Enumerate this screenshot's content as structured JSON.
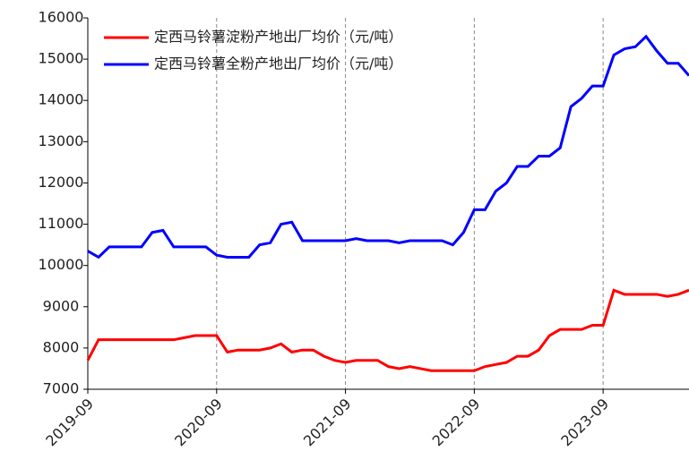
{
  "chart_data": {
    "type": "line",
    "x": [
      "2019-09",
      "2019-10",
      "2019-11",
      "2019-12",
      "2020-01",
      "2020-02",
      "2020-03",
      "2020-04",
      "2020-05",
      "2020-06",
      "2020-07",
      "2020-08",
      "2020-09",
      "2020-10",
      "2020-11",
      "2020-12",
      "2021-01",
      "2021-02",
      "2021-03",
      "2021-04",
      "2021-05",
      "2021-06",
      "2021-07",
      "2021-08",
      "2021-09",
      "2021-10",
      "2021-11",
      "2021-12",
      "2022-01",
      "2022-02",
      "2022-03",
      "2022-04",
      "2022-05",
      "2022-06",
      "2022-07",
      "2022-08",
      "2022-09",
      "2022-10",
      "2022-11",
      "2022-12",
      "2023-01",
      "2023-02",
      "2023-03",
      "2023-04",
      "2023-05",
      "2023-06",
      "2023-07",
      "2023-08",
      "2023-09",
      "2023-10",
      "2023-11",
      "2023-12",
      "2024-01",
      "2024-02",
      "2024-03",
      "2024-04",
      "2024-05"
    ],
    "series": [
      {
        "name": "定西马铃薯淀粉产地出厂均价（元/吨）",
        "color": "#ff0000",
        "values": [
          7700,
          8200,
          8200,
          8200,
          8200,
          8200,
          8200,
          8200,
          8200,
          8250,
          8300,
          8300,
          8300,
          7900,
          7950,
          7950,
          7950,
          8000,
          8100,
          7900,
          7950,
          7950,
          7800,
          7700,
          7650,
          7700,
          7700,
          7700,
          7550,
          7500,
          7550,
          7500,
          7450,
          7450,
          7450,
          7450,
          7450,
          7550,
          7600,
          7650,
          7800,
          7800,
          7950,
          8300,
          8450,
          8450,
          8450,
          8550,
          8550,
          9400,
          9300,
          9300,
          9300,
          9300,
          9250,
          9300,
          9400
        ]
      },
      {
        "name": "定西马铃薯全粉产地出厂均价（元/吨）",
        "color": "#0000ff",
        "values": [
          10350,
          10200,
          10450,
          10450,
          10450,
          10450,
          10800,
          10850,
          10450,
          10450,
          10450,
          10450,
          10250,
          10200,
          10200,
          10200,
          10500,
          10550,
          11000,
          11050,
          10600,
          10600,
          10600,
          10600,
          10600,
          10650,
          10600,
          10600,
          10600,
          10550,
          10600,
          10600,
          10600,
          10600,
          10500,
          10800,
          11350,
          11350,
          11800,
          12000,
          12400,
          12400,
          12650,
          12650,
          12850,
          13850,
          14050,
          14350,
          14350,
          15100,
          15250,
          15300,
          15550,
          15200,
          14900,
          14900,
          14600
        ]
      }
    ],
    "xlim": [
      "2019-09",
      "2024-05"
    ],
    "xticks": [
      "2019-09",
      "2020-09",
      "2021-09",
      "2022-09",
      "2023-09"
    ],
    "ylim": [
      7000,
      16000
    ],
    "yticks": [
      7000,
      8000,
      9000,
      10000,
      11000,
      12000,
      13000,
      14000,
      15000,
      16000
    ],
    "grid": "x",
    "legend": "upper-left"
  }
}
